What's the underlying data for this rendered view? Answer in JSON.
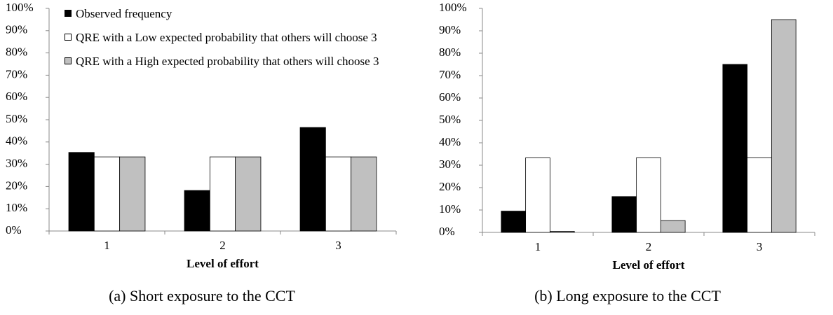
{
  "chart_data": [
    {
      "type": "bar",
      "caption": "(a) Short exposure to the CCT",
      "xlabel": "Level of effort",
      "categories": [
        "1",
        "2",
        "3"
      ],
      "series": [
        {
          "name": "Observed frequency",
          "color": "#000000",
          "values": [
            35.3,
            18.2,
            46.5
          ]
        },
        {
          "name": "QRE with a Low expected probability that others will choose 3",
          "color": "#ffffff",
          "values": [
            33.3,
            33.3,
            33.3
          ]
        },
        {
          "name": "QRE with a High expected probability that others will choose 3",
          "color": "#c0c0c0",
          "values": [
            33.3,
            33.3,
            33.3
          ]
        }
      ],
      "ylim": [
        0,
        100
      ],
      "yticks": [
        {
          "value": 0,
          "label": "0%"
        },
        {
          "value": 10,
          "label": "10%"
        },
        {
          "value": 20,
          "label": "20%"
        },
        {
          "value": 30,
          "label": "30%"
        },
        {
          "value": 40,
          "label": "40%"
        },
        {
          "value": 50,
          "label": "50%"
        },
        {
          "value": 60,
          "label": "60%"
        },
        {
          "value": 70,
          "label": "70%"
        },
        {
          "value": 80,
          "label": "80%"
        },
        {
          "value": 90,
          "label": "90%"
        },
        {
          "value": 100,
          "label": "100%"
        }
      ],
      "legend": "upper left"
    },
    {
      "type": "bar",
      "caption": "(b) Long exposure to the CCT",
      "xlabel": "Level of effort",
      "categories": [
        "1",
        "2",
        "3"
      ],
      "series": [
        {
          "color": "#000000",
          "values": [
            9.5,
            16.0,
            75.0
          ]
        },
        {
          "color": "#ffffff",
          "values": [
            33.3,
            33.3,
            33.3
          ]
        },
        {
          "color": "#c0c0c0",
          "values": [
            0.5,
            5.3,
            95.0
          ]
        }
      ],
      "ylim": [
        0,
        100
      ],
      "yticks": [
        {
          "value": 0,
          "label": "0%"
        },
        {
          "value": 10,
          "label": "10%"
        },
        {
          "value": 20,
          "label": "20%"
        },
        {
          "value": 30,
          "label": "30%"
        },
        {
          "value": 40,
          "label": "40%"
        },
        {
          "value": 50,
          "label": "50%"
        },
        {
          "value": 60,
          "label": "60%"
        },
        {
          "value": 70,
          "label": "70%"
        },
        {
          "value": 80,
          "label": "80%"
        },
        {
          "value": 90,
          "label": "90%"
        },
        {
          "value": 100,
          "label": "100%"
        }
      ]
    }
  ]
}
